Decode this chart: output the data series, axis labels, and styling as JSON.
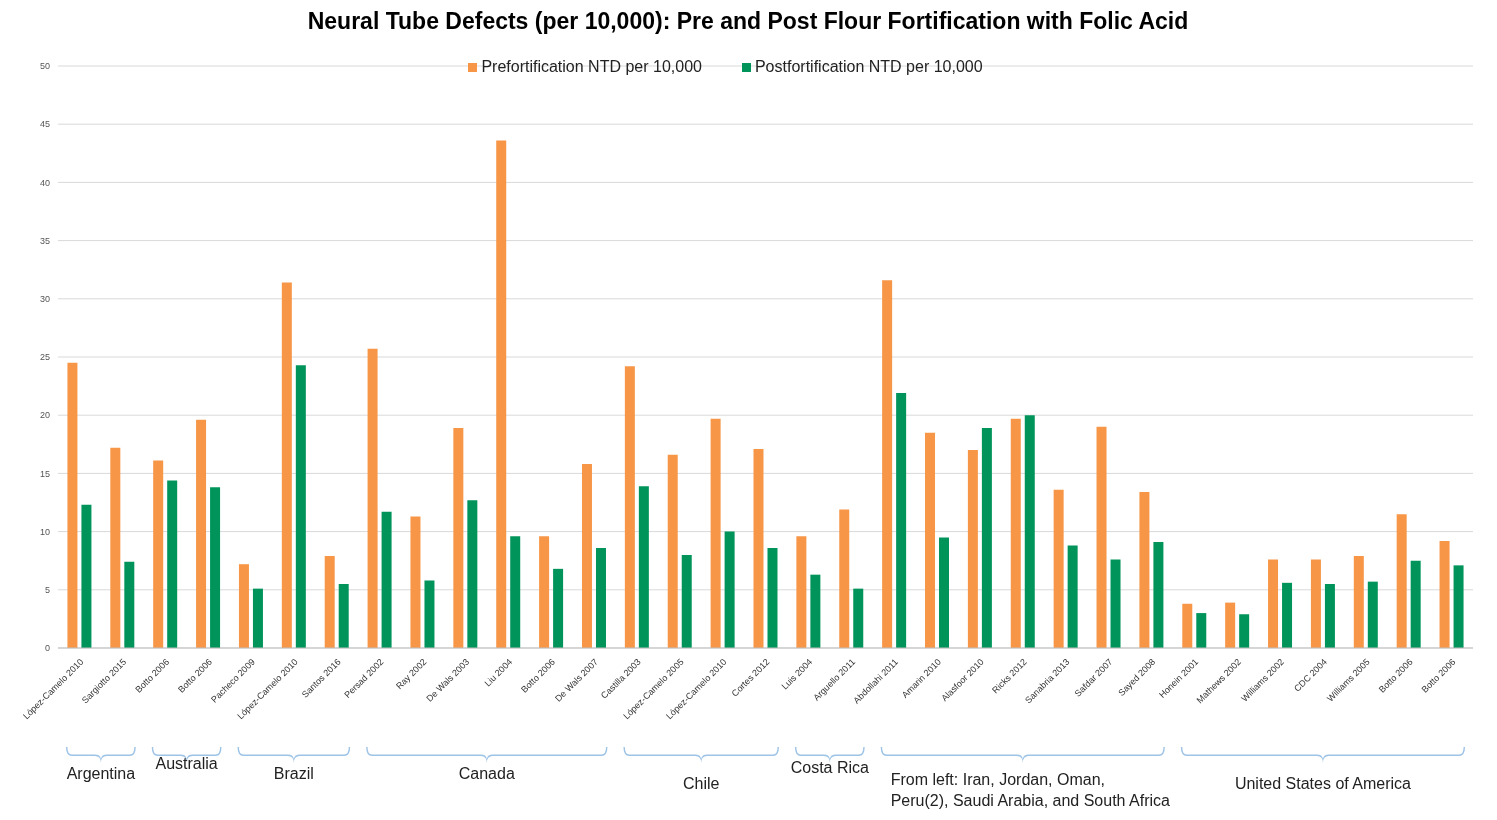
{
  "chart_data": {
    "type": "bar",
    "title": "Neural Tube Defects (per 10,000): Pre and Post Flour Fortification with Folic Acid",
    "categories": [
      "López-Camelo 2010",
      "Sargiotto 2015",
      "Botto 2006",
      "Botto 2006",
      "Pacheco 2009",
      "López-Camelo 2010",
      "Santos 2016",
      "Persad 2002",
      "Ray 2002",
      "De Wals 2003",
      "Liu 2004",
      "Botto 2006",
      "De Wals 2007",
      "Castilla 2003",
      "López-Camelo 2005",
      "López-Camelo 2010",
      "Cortes 2012",
      "Luis 2004",
      "Arguello 2011",
      "Abdollahi 2011",
      "Amarin 2010",
      "Alasfoor 2010",
      "Ricks 2012",
      "Sanabria 2013",
      "Safdar 2007",
      "Sayed 2008",
      "Honein 2001",
      "Mathews 2002",
      "Williams 2002",
      "CDC 2004",
      "Williams 2005",
      "Botto 2006",
      "Botto 2006"
    ],
    "series": [
      {
        "name": "Prefortification NTD per 10,000",
        "color": "#f79646",
        "values": [
          24.5,
          17.2,
          16.1,
          19.6,
          7.2,
          31.4,
          7.9,
          25.7,
          11.3,
          18.9,
          43.6,
          9.6,
          15.8,
          24.2,
          16.6,
          19.7,
          17.1,
          9.6,
          11.9,
          31.6,
          18.5,
          17.0,
          19.7,
          13.6,
          19.0,
          13.4,
          3.8,
          3.9,
          7.6,
          7.6,
          7.9,
          11.5,
          9.2
        ]
      },
      {
        "name": "Postfortification NTD per 10,000",
        "color": "#00945a",
        "values": [
          12.3,
          7.4,
          14.4,
          13.8,
          5.1,
          24.3,
          5.5,
          11.7,
          5.8,
          12.7,
          9.6,
          6.8,
          8.6,
          13.9,
          8.0,
          10.0,
          8.6,
          6.3,
          5.1,
          21.9,
          9.5,
          18.9,
          20.0,
          8.8,
          7.6,
          9.1,
          3.0,
          2.9,
          5.6,
          5.5,
          5.7,
          7.5,
          7.1
        ]
      }
    ],
    "ylim": [
      0,
      50
    ],
    "yticks": [
      0,
      5,
      10,
      15,
      20,
      25,
      30,
      35,
      40,
      45,
      50
    ],
    "grid": "y",
    "legend": "top",
    "annotations": [
      "Argentina",
      "Australia",
      "Brazil",
      "Canada",
      "Chile",
      "Costa Rica",
      "From left: Iran, Jordan, Oman,\nPeru(2), Saudi Arabia, and South Africa",
      "United States of America"
    ]
  }
}
